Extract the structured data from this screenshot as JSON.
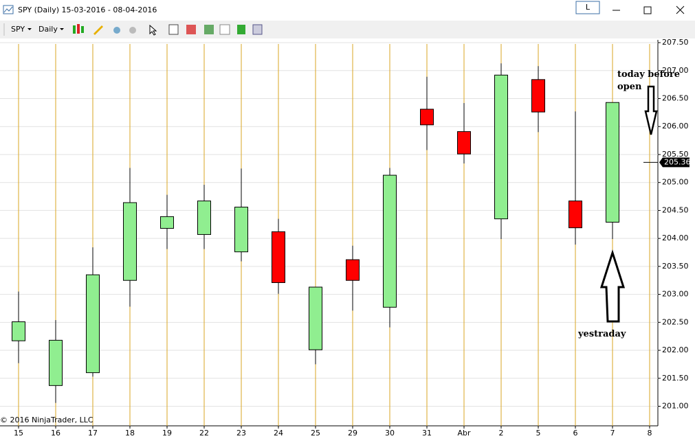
{
  "window": {
    "title": "SPY (Daily)  15-03-2016 - 08-04-2016",
    "button": "L"
  },
  "toolbar": {
    "instrument": "SPY",
    "period": "Daily"
  },
  "chart_data": {
    "type": "candlestick",
    "categories": [
      "15",
      "16",
      "17",
      "18",
      "19",
      "22",
      "23",
      "24",
      "25",
      "29",
      "30",
      "31",
      "Abr",
      "2",
      "5",
      "6",
      "7",
      "8"
    ],
    "open": [
      202.17,
      201.37,
      201.6,
      203.25,
      204.18,
      204.07,
      203.76,
      204.12,
      202.01,
      203.62,
      202.77,
      206.31,
      205.91,
      204.35,
      206.84,
      204.67,
      204.29,
      null
    ],
    "high": [
      203.05,
      202.54,
      203.84,
      205.26,
      204.78,
      204.96,
      205.25,
      204.35,
      203.13,
      203.87,
      205.26,
      206.89,
      206.42,
      207.13,
      207.08,
      206.27,
      206.43,
      null
    ],
    "low": [
      201.77,
      201.06,
      201.53,
      202.78,
      203.81,
      203.81,
      203.59,
      203.01,
      201.75,
      202.71,
      202.41,
      205.58,
      205.34,
      203.99,
      205.9,
      203.89,
      203.99,
      null
    ],
    "close": [
      202.51,
      202.18,
      203.35,
      204.64,
      204.39,
      204.67,
      204.56,
      203.21,
      203.13,
      203.25,
      205.13,
      206.03,
      205.51,
      206.92,
      206.26,
      204.19,
      206.43,
      null
    ],
    "up_color": "#90ee90",
    "down_color": "#ff0000",
    "ylim": [
      200.65,
      207.55
    ],
    "yticks": [
      {
        "value": 201,
        "label": "201.00"
      },
      {
        "value": 201.5,
        "label": "201.50"
      },
      {
        "value": 202,
        "label": "202.00"
      },
      {
        "value": 202.5,
        "label": "202.50"
      },
      {
        "value": 203,
        "label": "203.00"
      },
      {
        "value": 203.5,
        "label": "203.50"
      },
      {
        "value": 204,
        "label": "204.00"
      },
      {
        "value": 204.5,
        "label": "204.50"
      },
      {
        "value": 205,
        "label": "205.00"
      },
      {
        "value": 205.5,
        "label": "205.50"
      },
      {
        "value": 206,
        "label": "206.00"
      },
      {
        "value": 206.5,
        "label": "206.50"
      },
      {
        "value": 207,
        "label": "207.00"
      },
      {
        "value": 207.5,
        "label": "207.50"
      }
    ],
    "grid": true,
    "last_price": 205.36,
    "annotations": [
      "today before open",
      "yestraday"
    ],
    "copyright": "© 2016 NinjaTrader, LLC"
  }
}
